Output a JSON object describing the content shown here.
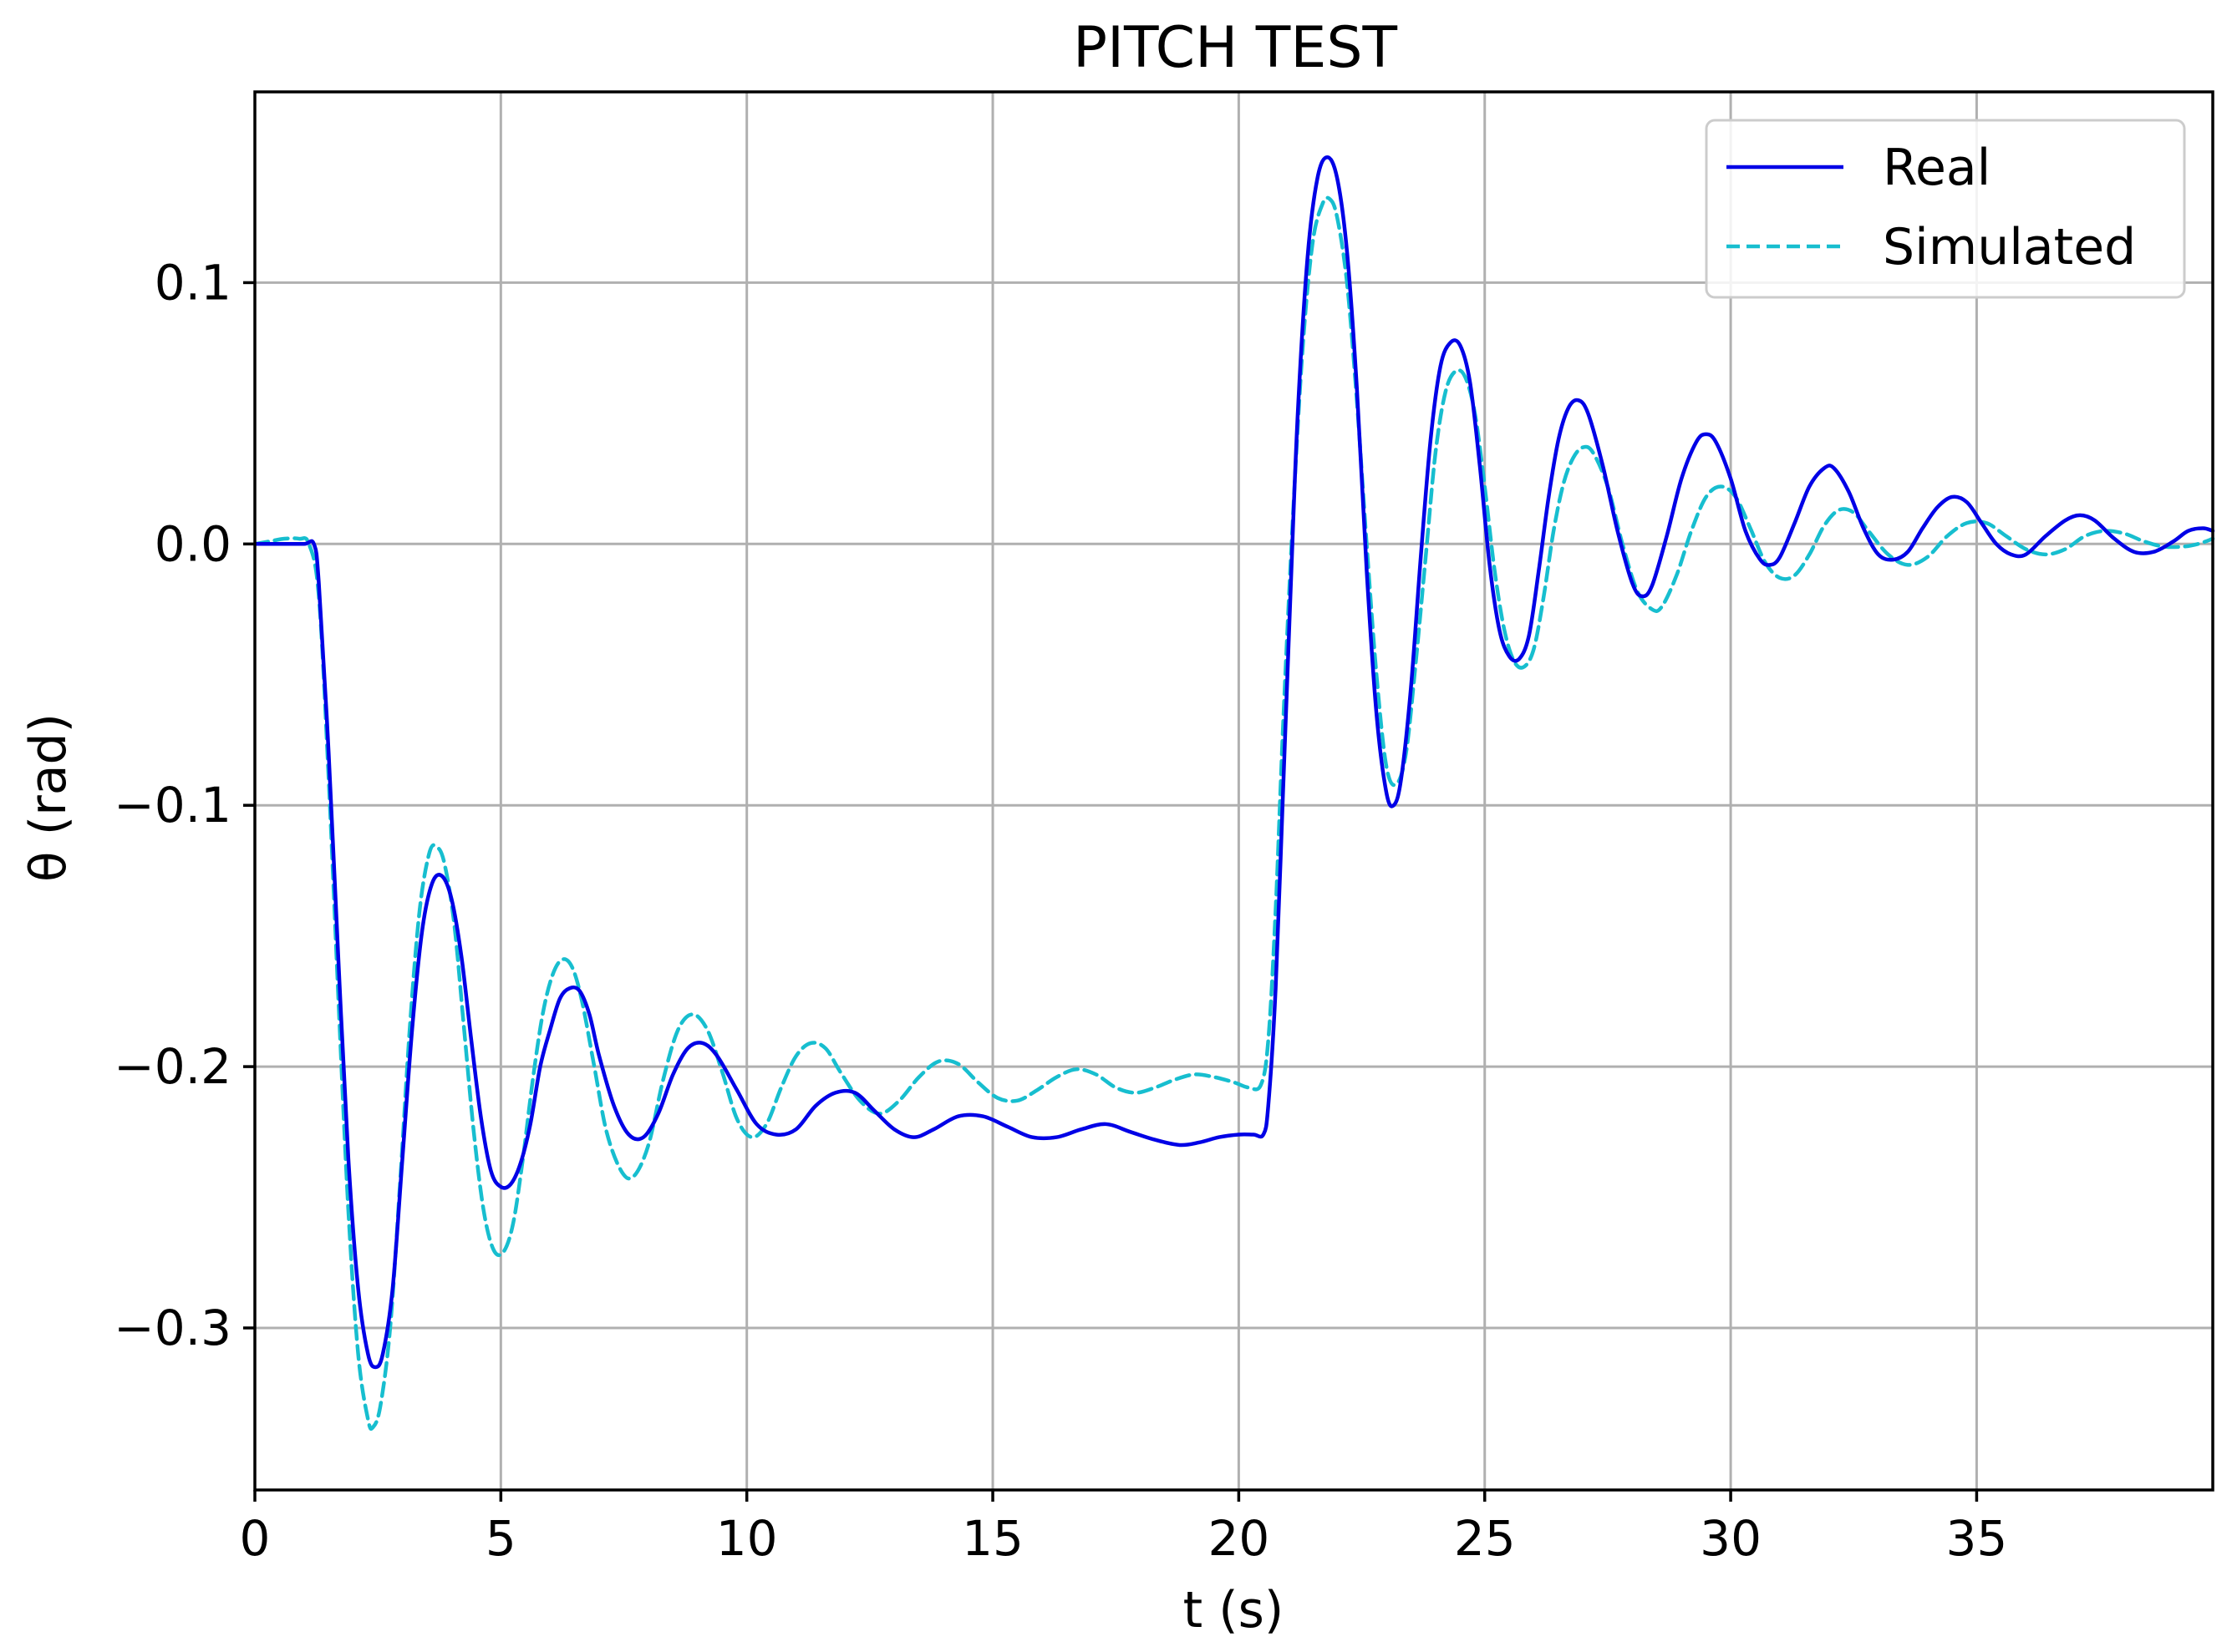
{
  "chart_data": {
    "type": "line",
    "title": "PITCH TEST",
    "xlabel": "t (s)",
    "ylabel": "θ (rad)",
    "xlim": [
      0,
      39.8
    ],
    "ylim": [
      -0.362,
      0.173
    ],
    "xticks": [
      0,
      5,
      10,
      15,
      20,
      25,
      30,
      35
    ],
    "yticks": [
      -0.3,
      -0.2,
      -0.1,
      0.0,
      0.1
    ],
    "xtick_labels": [
      "0",
      "5",
      "10",
      "15",
      "20",
      "25",
      "30",
      "35"
    ],
    "ytick_labels": [
      "−0.3",
      "−0.2",
      "−0.1",
      "0.0",
      "0.1"
    ],
    "grid": true,
    "legend_position": "top-right",
    "series": [
      {
        "name": "Real",
        "color": "#0000e6",
        "style": "solid",
        "points": [
          [
            0,
            0
          ],
          [
            0.5,
            0
          ],
          [
            1.0,
            0.0
          ],
          [
            1.2,
            0.0
          ],
          [
            1.3,
            -0.015
          ],
          [
            1.5,
            -0.08
          ],
          [
            1.7,
            -0.16
          ],
          [
            1.9,
            -0.235
          ],
          [
            2.1,
            -0.285
          ],
          [
            2.3,
            -0.31
          ],
          [
            2.45,
            -0.315
          ],
          [
            2.6,
            -0.31
          ],
          [
            2.8,
            -0.285
          ],
          [
            3.0,
            -0.235
          ],
          [
            3.2,
            -0.185
          ],
          [
            3.4,
            -0.148
          ],
          [
            3.6,
            -0.13
          ],
          [
            3.8,
            -0.127
          ],
          [
            4.0,
            -0.136
          ],
          [
            4.2,
            -0.158
          ],
          [
            4.4,
            -0.19
          ],
          [
            4.6,
            -0.22
          ],
          [
            4.8,
            -0.24
          ],
          [
            5.0,
            -0.246
          ],
          [
            5.2,
            -0.245
          ],
          [
            5.4,
            -0.237
          ],
          [
            5.6,
            -0.222
          ],
          [
            5.8,
            -0.2
          ],
          [
            6.0,
            -0.186
          ],
          [
            6.2,
            -0.174
          ],
          [
            6.4,
            -0.17
          ],
          [
            6.6,
            -0.171
          ],
          [
            6.8,
            -0.18
          ],
          [
            7.0,
            -0.196
          ],
          [
            7.3,
            -0.215
          ],
          [
            7.6,
            -0.226
          ],
          [
            7.9,
            -0.227
          ],
          [
            8.2,
            -0.218
          ],
          [
            8.5,
            -0.203
          ],
          [
            8.8,
            -0.193
          ],
          [
            9.1,
            -0.191
          ],
          [
            9.4,
            -0.196
          ],
          [
            9.8,
            -0.209
          ],
          [
            10.2,
            -0.222
          ],
          [
            10.6,
            -0.226
          ],
          [
            11.0,
            -0.224
          ],
          [
            11.4,
            -0.215
          ],
          [
            11.8,
            -0.21
          ],
          [
            12.2,
            -0.21
          ],
          [
            12.6,
            -0.217
          ],
          [
            13.0,
            -0.224
          ],
          [
            13.4,
            -0.227
          ],
          [
            13.8,
            -0.224
          ],
          [
            14.3,
            -0.219
          ],
          [
            14.8,
            -0.219
          ],
          [
            15.3,
            -0.223
          ],
          [
            15.8,
            -0.227
          ],
          [
            16.3,
            -0.227
          ],
          [
            16.8,
            -0.224
          ],
          [
            17.3,
            -0.222
          ],
          [
            17.8,
            -0.225
          ],
          [
            18.3,
            -0.228
          ],
          [
            18.8,
            -0.23
          ],
          [
            19.2,
            -0.229
          ],
          [
            19.6,
            -0.227
          ],
          [
            20.0,
            -0.226
          ],
          [
            20.3,
            -0.226
          ],
          [
            20.5,
            -0.226
          ],
          [
            20.6,
            -0.215
          ],
          [
            20.75,
            -0.17
          ],
          [
            20.9,
            -0.095
          ],
          [
            21.05,
            -0.02
          ],
          [
            21.2,
            0.05
          ],
          [
            21.4,
            0.11
          ],
          [
            21.6,
            0.14
          ],
          [
            21.8,
            0.148
          ],
          [
            22.0,
            0.14
          ],
          [
            22.2,
            0.112
          ],
          [
            22.4,
            0.06
          ],
          [
            22.6,
            -0.01
          ],
          [
            22.8,
            -0.065
          ],
          [
            23.0,
            -0.095
          ],
          [
            23.15,
            -0.1
          ],
          [
            23.3,
            -0.09
          ],
          [
            23.5,
            -0.055
          ],
          [
            23.7,
            -0.005
          ],
          [
            23.9,
            0.04
          ],
          [
            24.1,
            0.068
          ],
          [
            24.3,
            0.077
          ],
          [
            24.5,
            0.076
          ],
          [
            24.7,
            0.062
          ],
          [
            24.9,
            0.03
          ],
          [
            25.1,
            -0.008
          ],
          [
            25.3,
            -0.033
          ],
          [
            25.5,
            -0.043
          ],
          [
            25.7,
            -0.044
          ],
          [
            25.9,
            -0.035
          ],
          [
            26.1,
            -0.01
          ],
          [
            26.3,
            0.018
          ],
          [
            26.5,
            0.04
          ],
          [
            26.7,
            0.052
          ],
          [
            26.9,
            0.055
          ],
          [
            27.1,
            0.05
          ],
          [
            27.4,
            0.03
          ],
          [
            27.7,
            0.005
          ],
          [
            28.0,
            -0.015
          ],
          [
            28.2,
            -0.02
          ],
          [
            28.4,
            -0.016
          ],
          [
            28.7,
            0.003
          ],
          [
            29.0,
            0.025
          ],
          [
            29.3,
            0.039
          ],
          [
            29.5,
            0.042
          ],
          [
            29.7,
            0.039
          ],
          [
            30.0,
            0.025
          ],
          [
            30.3,
            0.005
          ],
          [
            30.6,
            -0.006
          ],
          [
            30.8,
            -0.008
          ],
          [
            31.0,
            -0.005
          ],
          [
            31.3,
            0.008
          ],
          [
            31.6,
            0.022
          ],
          [
            31.9,
            0.029
          ],
          [
            32.1,
            0.029
          ],
          [
            32.4,
            0.02
          ],
          [
            32.7,
            0.006
          ],
          [
            33.0,
            -0.004
          ],
          [
            33.3,
            -0.006
          ],
          [
            33.6,
            -0.003
          ],
          [
            33.9,
            0.006
          ],
          [
            34.2,
            0.014
          ],
          [
            34.5,
            0.018
          ],
          [
            34.8,
            0.016
          ],
          [
            35.1,
            0.008
          ],
          [
            35.4,
            0.0
          ],
          [
            35.7,
            -0.004
          ],
          [
            36.0,
            -0.004
          ],
          [
            36.4,
            0.003
          ],
          [
            36.8,
            0.009
          ],
          [
            37.1,
            0.011
          ],
          [
            37.4,
            0.009
          ],
          [
            37.8,
            0.002
          ],
          [
            38.2,
            -0.003
          ],
          [
            38.6,
            -0.003
          ],
          [
            39.0,
            0.001
          ],
          [
            39.3,
            0.005
          ],
          [
            39.6,
            0.006
          ],
          [
            39.8,
            0.005
          ]
        ]
      },
      {
        "name": "Simulated",
        "color": "#17becf",
        "style": "dashed",
        "points": [
          [
            0,
            0
          ],
          [
            0.3,
            0.001
          ],
          [
            0.6,
            0.002
          ],
          [
            0.9,
            0.002
          ],
          [
            1.1,
            0.0
          ],
          [
            1.3,
            -0.02
          ],
          [
            1.5,
            -0.09
          ],
          [
            1.7,
            -0.175
          ],
          [
            1.9,
            -0.255
          ],
          [
            2.1,
            -0.31
          ],
          [
            2.3,
            -0.335
          ],
          [
            2.4,
            -0.338
          ],
          [
            2.55,
            -0.33
          ],
          [
            2.75,
            -0.3
          ],
          [
            2.95,
            -0.245
          ],
          [
            3.15,
            -0.185
          ],
          [
            3.35,
            -0.14
          ],
          [
            3.55,
            -0.118
          ],
          [
            3.7,
            -0.116
          ],
          [
            3.85,
            -0.122
          ],
          [
            4.05,
            -0.145
          ],
          [
            4.25,
            -0.185
          ],
          [
            4.45,
            -0.225
          ],
          [
            4.65,
            -0.255
          ],
          [
            4.85,
            -0.27
          ],
          [
            5.05,
            -0.271
          ],
          [
            5.25,
            -0.26
          ],
          [
            5.45,
            -0.235
          ],
          [
            5.65,
            -0.205
          ],
          [
            5.85,
            -0.18
          ],
          [
            6.05,
            -0.165
          ],
          [
            6.25,
            -0.159
          ],
          [
            6.45,
            -0.162
          ],
          [
            6.65,
            -0.175
          ],
          [
            6.9,
            -0.2
          ],
          [
            7.15,
            -0.225
          ],
          [
            7.45,
            -0.24
          ],
          [
            7.7,
            -0.242
          ],
          [
            8.0,
            -0.23
          ],
          [
            8.3,
            -0.205
          ],
          [
            8.6,
            -0.186
          ],
          [
            8.9,
            -0.18
          ],
          [
            9.2,
            -0.186
          ],
          [
            9.5,
            -0.202
          ],
          [
            9.8,
            -0.22
          ],
          [
            10.1,
            -0.227
          ],
          [
            10.4,
            -0.222
          ],
          [
            10.7,
            -0.208
          ],
          [
            11.0,
            -0.196
          ],
          [
            11.3,
            -0.191
          ],
          [
            11.6,
            -0.193
          ],
          [
            11.9,
            -0.202
          ],
          [
            12.3,
            -0.213
          ],
          [
            12.7,
            -0.218
          ],
          [
            13.1,
            -0.213
          ],
          [
            13.5,
            -0.204
          ],
          [
            13.9,
            -0.198
          ],
          [
            14.3,
            -0.199
          ],
          [
            14.7,
            -0.206
          ],
          [
            15.1,
            -0.212
          ],
          [
            15.5,
            -0.213
          ],
          [
            15.9,
            -0.209
          ],
          [
            16.3,
            -0.204
          ],
          [
            16.7,
            -0.201
          ],
          [
            17.1,
            -0.203
          ],
          [
            17.5,
            -0.208
          ],
          [
            17.9,
            -0.21
          ],
          [
            18.3,
            -0.208
          ],
          [
            18.7,
            -0.205
          ],
          [
            19.1,
            -0.203
          ],
          [
            19.5,
            -0.204
          ],
          [
            19.9,
            -0.206
          ],
          [
            20.2,
            -0.208
          ],
          [
            20.45,
            -0.207
          ],
          [
            20.6,
            -0.19
          ],
          [
            20.75,
            -0.14
          ],
          [
            20.9,
            -0.07
          ],
          [
            21.1,
            0.01
          ],
          [
            21.3,
            0.075
          ],
          [
            21.5,
            0.115
          ],
          [
            21.7,
            0.13
          ],
          [
            21.85,
            0.132
          ],
          [
            22.0,
            0.125
          ],
          [
            22.2,
            0.1
          ],
          [
            22.4,
            0.055
          ],
          [
            22.6,
            0.0
          ],
          [
            22.8,
            -0.05
          ],
          [
            23.0,
            -0.085
          ],
          [
            23.2,
            -0.092
          ],
          [
            23.4,
            -0.08
          ],
          [
            23.6,
            -0.045
          ],
          [
            23.8,
            -0.005
          ],
          [
            24.0,
            0.035
          ],
          [
            24.2,
            0.058
          ],
          [
            24.4,
            0.066
          ],
          [
            24.6,
            0.064
          ],
          [
            24.8,
            0.05
          ],
          [
            25.0,
            0.022
          ],
          [
            25.2,
            -0.01
          ],
          [
            25.4,
            -0.033
          ],
          [
            25.6,
            -0.045
          ],
          [
            25.8,
            -0.047
          ],
          [
            26.0,
            -0.04
          ],
          [
            26.2,
            -0.02
          ],
          [
            26.4,
            0.005
          ],
          [
            26.6,
            0.023
          ],
          [
            26.8,
            0.033
          ],
          [
            27.0,
            0.037
          ],
          [
            27.2,
            0.035
          ],
          [
            27.5,
            0.022
          ],
          [
            27.8,
            0.0
          ],
          [
            28.1,
            -0.018
          ],
          [
            28.4,
            -0.025
          ],
          [
            28.6,
            -0.024
          ],
          [
            28.9,
            -0.012
          ],
          [
            29.2,
            0.005
          ],
          [
            29.5,
            0.018
          ],
          [
            29.8,
            0.022
          ],
          [
            30.1,
            0.018
          ],
          [
            30.4,
            0.006
          ],
          [
            30.7,
            -0.007
          ],
          [
            31.0,
            -0.013
          ],
          [
            31.3,
            -0.012
          ],
          [
            31.6,
            -0.004
          ],
          [
            31.9,
            0.007
          ],
          [
            32.2,
            0.013
          ],
          [
            32.5,
            0.012
          ],
          [
            32.8,
            0.005
          ],
          [
            33.2,
            -0.004
          ],
          [
            33.6,
            -0.008
          ],
          [
            34.0,
            -0.005
          ],
          [
            34.4,
            0.003
          ],
          [
            34.8,
            0.008
          ],
          [
            35.2,
            0.008
          ],
          [
            35.6,
            0.003
          ],
          [
            36.0,
            -0.002
          ],
          [
            36.4,
            -0.004
          ],
          [
            36.8,
            -0.002
          ],
          [
            37.2,
            0.003
          ],
          [
            37.6,
            0.005
          ],
          [
            38.0,
            0.004
          ],
          [
            38.4,
            0.001
          ],
          [
            38.8,
            -0.001
          ],
          [
            39.2,
            -0.001
          ],
          [
            39.5,
            0.0
          ],
          [
            39.8,
            0.002
          ]
        ]
      }
    ]
  }
}
